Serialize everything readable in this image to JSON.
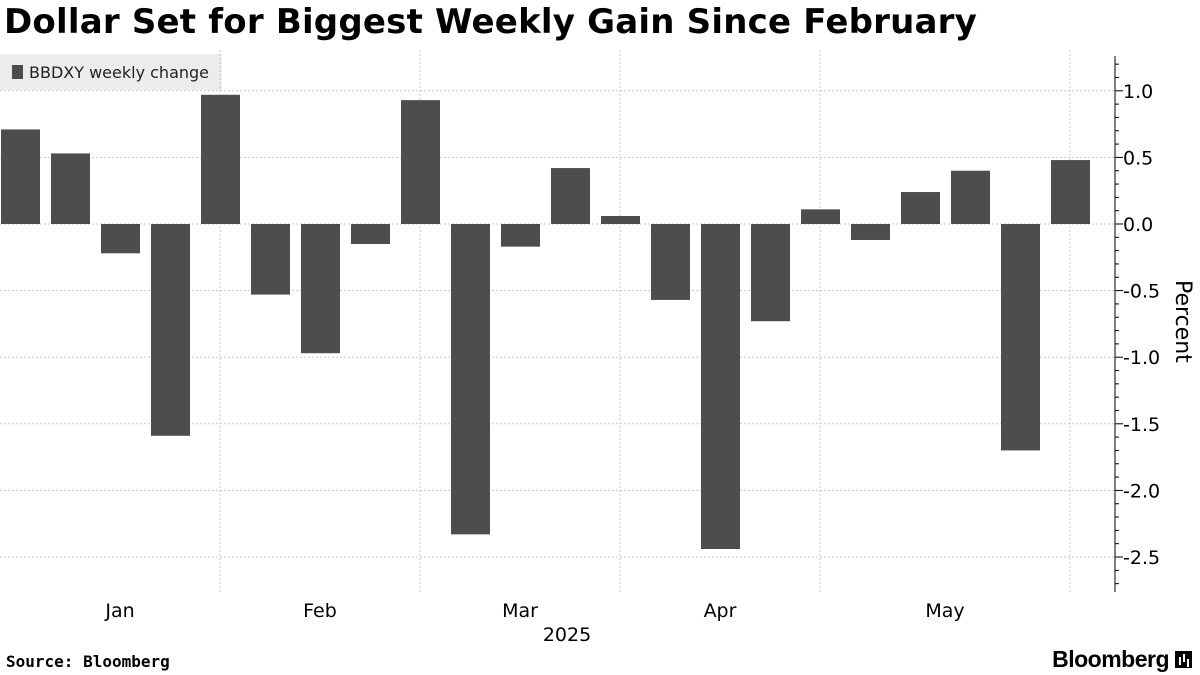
{
  "title": "Dollar Set for Biggest Weekly Gain Since February",
  "legend": {
    "label": "BBDXY weekly change",
    "color": "#4d4d4d"
  },
  "source": "Source: Bloomberg",
  "brand": {
    "name": "Bloomberg",
    "icon": "bloomberg-logo-icon"
  },
  "chart_data": {
    "type": "bar",
    "title": "Dollar Set for Biggest Weekly Gain Since February",
    "ylabel": "Percent",
    "xlabel": "2025",
    "ylim": [
      -2.78,
      1.28
    ],
    "y_axis_side": "right",
    "y_ticks": [
      "1.0",
      "0.5",
      "0.0",
      "-0.5",
      "-1.0",
      "-1.5",
      "-2.0",
      "-2.5"
    ],
    "y_tick_values": [
      1.0,
      0.5,
      0.0,
      -0.5,
      -1.0,
      -1.5,
      -2.0,
      -2.5
    ],
    "x_ticks": [
      "Jan",
      "Feb",
      "Mar",
      "Apr",
      "May"
    ],
    "x_year_label": "2025",
    "grid": true,
    "legend_position": "top-left",
    "bar_color": "#4d4d4d",
    "series": [
      {
        "name": "BBDXY weekly change",
        "values": [
          0.71,
          0.53,
          -0.22,
          -1.59,
          0.97,
          -0.53,
          -0.97,
          -0.15,
          0.93,
          -2.33,
          -0.17,
          0.42,
          0.06,
          -0.57,
          -2.44,
          -0.73,
          0.11,
          -0.12,
          0.24,
          0.4,
          -1.7,
          0.48
        ]
      }
    ]
  }
}
